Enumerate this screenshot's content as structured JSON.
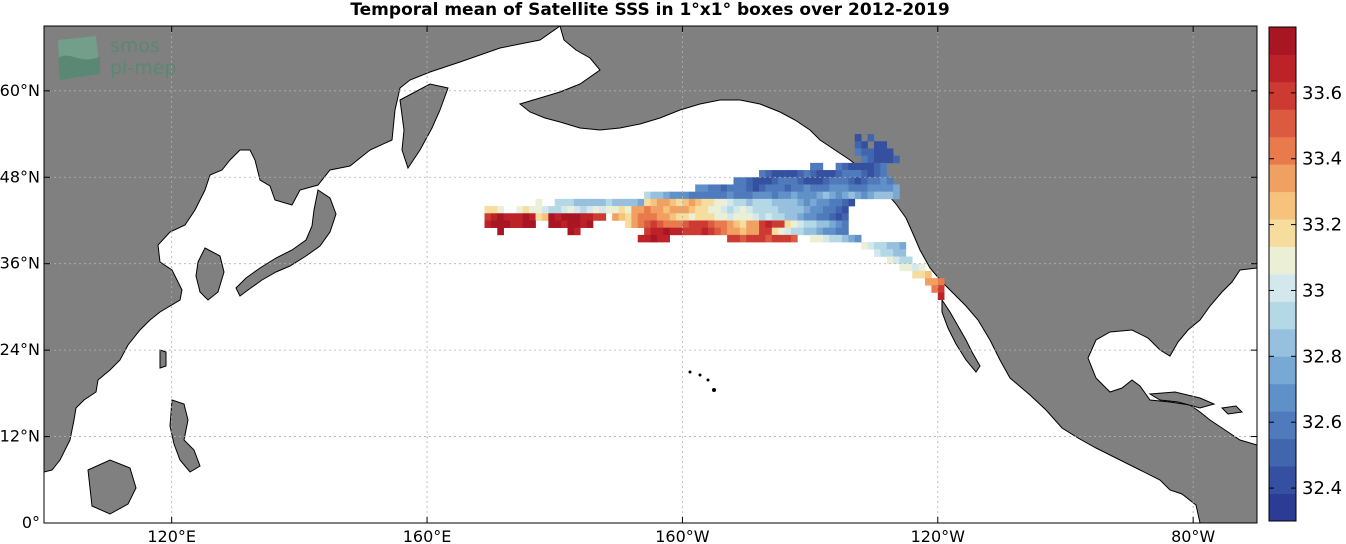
{
  "title": "Temporal mean of Satellite SSS in 1°x1° boxes over 2012-2019",
  "logo": {
    "line1": "smos",
    "line2": "pi-mep"
  },
  "map": {
    "lon_range": [
      100,
      290
    ],
    "lat_range": [
      0,
      69
    ],
    "land_color": "#808080",
    "ocean_color": "#ffffff",
    "lat_ticks": [
      {
        "value": 0,
        "label": "0°"
      },
      {
        "value": 12,
        "label": "12°N"
      },
      {
        "value": 24,
        "label": "24°N"
      },
      {
        "value": 36,
        "label": "36°N"
      },
      {
        "value": 48,
        "label": "48°N"
      },
      {
        "value": 60,
        "label": "60°N"
      }
    ],
    "lon_ticks": [
      {
        "value": 120,
        "label": "120°E"
      },
      {
        "value": 160,
        "label": "160°E"
      },
      {
        "value": 200,
        "label": "160°W"
      },
      {
        "value": 240,
        "label": "120°W"
      },
      {
        "value": 280,
        "label": "80°W"
      }
    ]
  },
  "colorbar": {
    "vmin": 32.3,
    "vmax": 33.8,
    "colors": [
      "#2c3c94",
      "#3550a0",
      "#4166ae",
      "#4f7bbd",
      "#6090c8",
      "#78a8d4",
      "#96c0dd",
      "#b4d8e6",
      "#d2e8ec",
      "#ebefd6",
      "#f6dd9e",
      "#f6c27c",
      "#f0a060",
      "#e87a4c",
      "#dc5a40",
      "#cd3a32",
      "#bc2228",
      "#a81624"
    ],
    "ticks": [
      {
        "value": 32.4,
        "label": "32.4"
      },
      {
        "value": 32.6,
        "label": "32.6"
      },
      {
        "value": 32.8,
        "label": "32.8"
      },
      {
        "value": 33.0,
        "label": "33"
      },
      {
        "value": 33.2,
        "label": "33.2"
      },
      {
        "value": 33.4,
        "label": "33.4"
      },
      {
        "value": 33.6,
        "label": "33.6"
      }
    ]
  },
  "sss_cells": {
    "cell_size_deg": 1,
    "rows": [
      {
        "lat": 53,
        "lon0": 227,
        "values": [
          32.45,
          null,
          32.5
        ]
      },
      {
        "lat": 52,
        "lon0": 227,
        "values": [
          32.5,
          32.45,
          null,
          32.4,
          32.4
        ]
      },
      {
        "lat": 51,
        "lon0": 227,
        "values": [
          32.6,
          32.5,
          32.5,
          32.45,
          32.4,
          32.45
        ]
      },
      {
        "lat": 50,
        "lon0": 228,
        "values": [
          32.55,
          32.5,
          32.45,
          32.4,
          32.45,
          32.5
        ]
      },
      {
        "lat": 49,
        "lon0": 220,
        "values": [
          32.6,
          32.55,
          null,
          null,
          32.6,
          32.5,
          32.45,
          32.4,
          32.4,
          32.45,
          32.5,
          32.55
        ]
      },
      {
        "lat": 48,
        "lon0": 212,
        "values": [
          32.55,
          32.5,
          32.45,
          32.4,
          32.4,
          32.45,
          32.5,
          32.55,
          32.5,
          32.45,
          32.4,
          32.45,
          32.5,
          32.55,
          32.6,
          32.55,
          32.5,
          32.45,
          32.5,
          32.55
        ]
      },
      {
        "lat": 47,
        "lon0": 208,
        "values": [
          32.6,
          32.55,
          32.5,
          32.45,
          32.4,
          32.45,
          32.5,
          32.55,
          32.6,
          32.55,
          32.5,
          32.45,
          32.4,
          32.45,
          32.5,
          32.55,
          32.6,
          32.55,
          32.5,
          32.45,
          32.5,
          32.55,
          32.6,
          32.65,
          32.6
        ]
      },
      {
        "lat": 46,
        "lon0": 202,
        "values": [
          32.7,
          32.65,
          32.6,
          32.55,
          32.5,
          32.55,
          32.6,
          32.55,
          32.5,
          32.45,
          32.5,
          32.55,
          32.6,
          32.55,
          32.5,
          32.55,
          32.6,
          32.65,
          32.6,
          32.55,
          32.6,
          32.65,
          32.7,
          32.65,
          32.6,
          32.55,
          32.6,
          32.65,
          32.7,
          32.65,
          32.7,
          32.75
        ]
      },
      {
        "lat": 45,
        "lon0": 194,
        "values": [
          32.9,
          32.85,
          32.8,
          32.75,
          32.7,
          32.7,
          32.65,
          32.6,
          32.6,
          32.55,
          32.55,
          32.6,
          32.6,
          32.65,
          32.6,
          32.55,
          32.6,
          32.65,
          32.7,
          32.65,
          32.6,
          32.65,
          32.7,
          32.75,
          32.7,
          32.65,
          32.7,
          32.75,
          32.8,
          32.75,
          32.7,
          32.75,
          32.8,
          32.75,
          32.7,
          32.75,
          32.8,
          32.85,
          32.8,
          32.75
        ]
      },
      {
        "lat": 44,
        "lon0": 177,
        "values": [
          33.05,
          null,
          null,
          32.95,
          32.9,
          32.9,
          32.85,
          32.85,
          32.8,
          32.8,
          32.85,
          32.9,
          32.85,
          32.8,
          32.85,
          32.8,
          32.75,
          33.2,
          33.25,
          33.3,
          33.3,
          33.25,
          33.2,
          33.25,
          33.3,
          33.25,
          33.2,
          33.15,
          33.1,
          33.05,
          33.0,
          32.95,
          32.9,
          32.85,
          32.9,
          32.95,
          32.9,
          32.85,
          32.8,
          32.85,
          32.8,
          32.75,
          32.7,
          32.75,
          32.7,
          32.65,
          32.6,
          32.55,
          32.5,
          32.45
        ]
      },
      {
        "lat": 43,
        "lon0": 169,
        "values": [
          33.2,
          33.15,
          33.1,
          null,
          null,
          33.1,
          33.15,
          33.1,
          33.05,
          33.0,
          32.95,
          32.9,
          33.0,
          33.05,
          33.0,
          32.95,
          33.0,
          33.05,
          33.0,
          33.05,
          33.1,
          33.15,
          33.1,
          33.3,
          33.35,
          33.4,
          33.35,
          33.3,
          33.25,
          33.3,
          33.35,
          33.3,
          33.25,
          33.2,
          33.15,
          33.1,
          33.05,
          33.0,
          32.95,
          33.0,
          33.05,
          33.0,
          32.95,
          32.9,
          32.95,
          32.9,
          32.85,
          32.8,
          32.85,
          32.8,
          32.75,
          32.7,
          32.65,
          32.6,
          32.55,
          32.5,
          32.45
        ]
      },
      {
        "lat": 42,
        "lon0": 169,
        "values": [
          33.6,
          33.7,
          33.75,
          33.7,
          33.65,
          33.7,
          33.75,
          33.7,
          33.2,
          33.25,
          33.75,
          33.7,
          33.75,
          33.8,
          33.75,
          33.7,
          33.65,
          33.6,
          33.55,
          null,
          33.3,
          33.25,
          33.2,
          33.35,
          33.4,
          33.45,
          33.4,
          33.35,
          33.3,
          33.25,
          33.2,
          33.15,
          33.1,
          33.15,
          33.2,
          33.15,
          33.1,
          33.05,
          33.0,
          33.05,
          33.1,
          33.05,
          33.0,
          32.95,
          33.0,
          32.95,
          32.9,
          32.85,
          32.8,
          32.75,
          32.7,
          32.65,
          32.6,
          32.55,
          32.5,
          32.45,
          32.5
        ]
      },
      {
        "lat": 41,
        "lon0": 169,
        "values": [
          33.7,
          33.75,
          33.8,
          33.75,
          33.7,
          33.7,
          33.75,
          33.8,
          null,
          null,
          33.8,
          33.75,
          33.7,
          33.8,
          33.75,
          33.7,
          33.75,
          null,
          null,
          null,
          null,
          null,
          33.2,
          33.35,
          33.45,
          33.5,
          33.55,
          33.5,
          33.45,
          33.4,
          33.45,
          33.5,
          33.55,
          33.6,
          33.55,
          33.5,
          33.45,
          33.4,
          33.3,
          33.25,
          33.2,
          33.3,
          33.35,
          33.6,
          33.65,
          33.6,
          33.55,
          33.2,
          33.1,
          33.0,
          32.95,
          32.9,
          32.85,
          32.8,
          32.75,
          32.7,
          32.6
        ]
      },
      {
        "lat": 40,
        "lon0": 171,
        "values": [
          33.75,
          null,
          null,
          null,
          null,
          null,
          null,
          null,
          null,
          null,
          null,
          33.75,
          33.7,
          null,
          null,
          null,
          null,
          null,
          null,
          null,
          null,
          null,
          null,
          33.6,
          33.65,
          33.7,
          33.75,
          33.7,
          33.65,
          33.6,
          33.55,
          33.6,
          33.65,
          33.55,
          33.5,
          33.4,
          33.35,
          33.3,
          33.25,
          33.3,
          33.35,
          33.6,
          33.55,
          33.2,
          33.1,
          33.0,
          32.95,
          32.9,
          32.85,
          32.8,
          32.75,
          32.7,
          32.65,
          32.6,
          32.6
        ]
      },
      {
        "lat": 39,
        "lon0": 193,
        "values": [
          33.65,
          33.7,
          33.75,
          33.7,
          33.65,
          null,
          null,
          null,
          null,
          null,
          null,
          null,
          null,
          null,
          33.6,
          33.55,
          33.5,
          33.55,
          33.6,
          33.55,
          33.5,
          33.55,
          33.6,
          33.55,
          33.5,
          null,
          null,
          33.1,
          33.05,
          33.0,
          32.95,
          32.9,
          32.85,
          32.75,
          32.7
        ]
      },
      {
        "lat": 38,
        "lon0": 228,
        "values": [
          33.05,
          33.0,
          32.95,
          32.9,
          32.85,
          32.8,
          32.75
        ]
      },
      {
        "lat": 37,
        "lon0": 230,
        "values": [
          33.0,
          32.95,
          32.9,
          32.85,
          32.8
        ]
      },
      {
        "lat": 36,
        "lon0": 232,
        "values": [
          33.05,
          33.0,
          32.95,
          32.9
        ]
      },
      {
        "lat": 35,
        "lon0": 234,
        "values": [
          33.1,
          33.05,
          33.0,
          33.05
        ]
      },
      {
        "lat": 34,
        "lon0": 236,
        "values": [
          33.15,
          33.2,
          33.25
        ]
      },
      {
        "lat": 33,
        "lon0": 238,
        "values": [
          33.3,
          33.35,
          33.45
        ]
      },
      {
        "lat": 32,
        "lon0": 239,
        "values": [
          33.4,
          33.6
        ]
      },
      {
        "lat": 31,
        "lon0": 240,
        "values": [
          33.7
        ]
      }
    ]
  }
}
